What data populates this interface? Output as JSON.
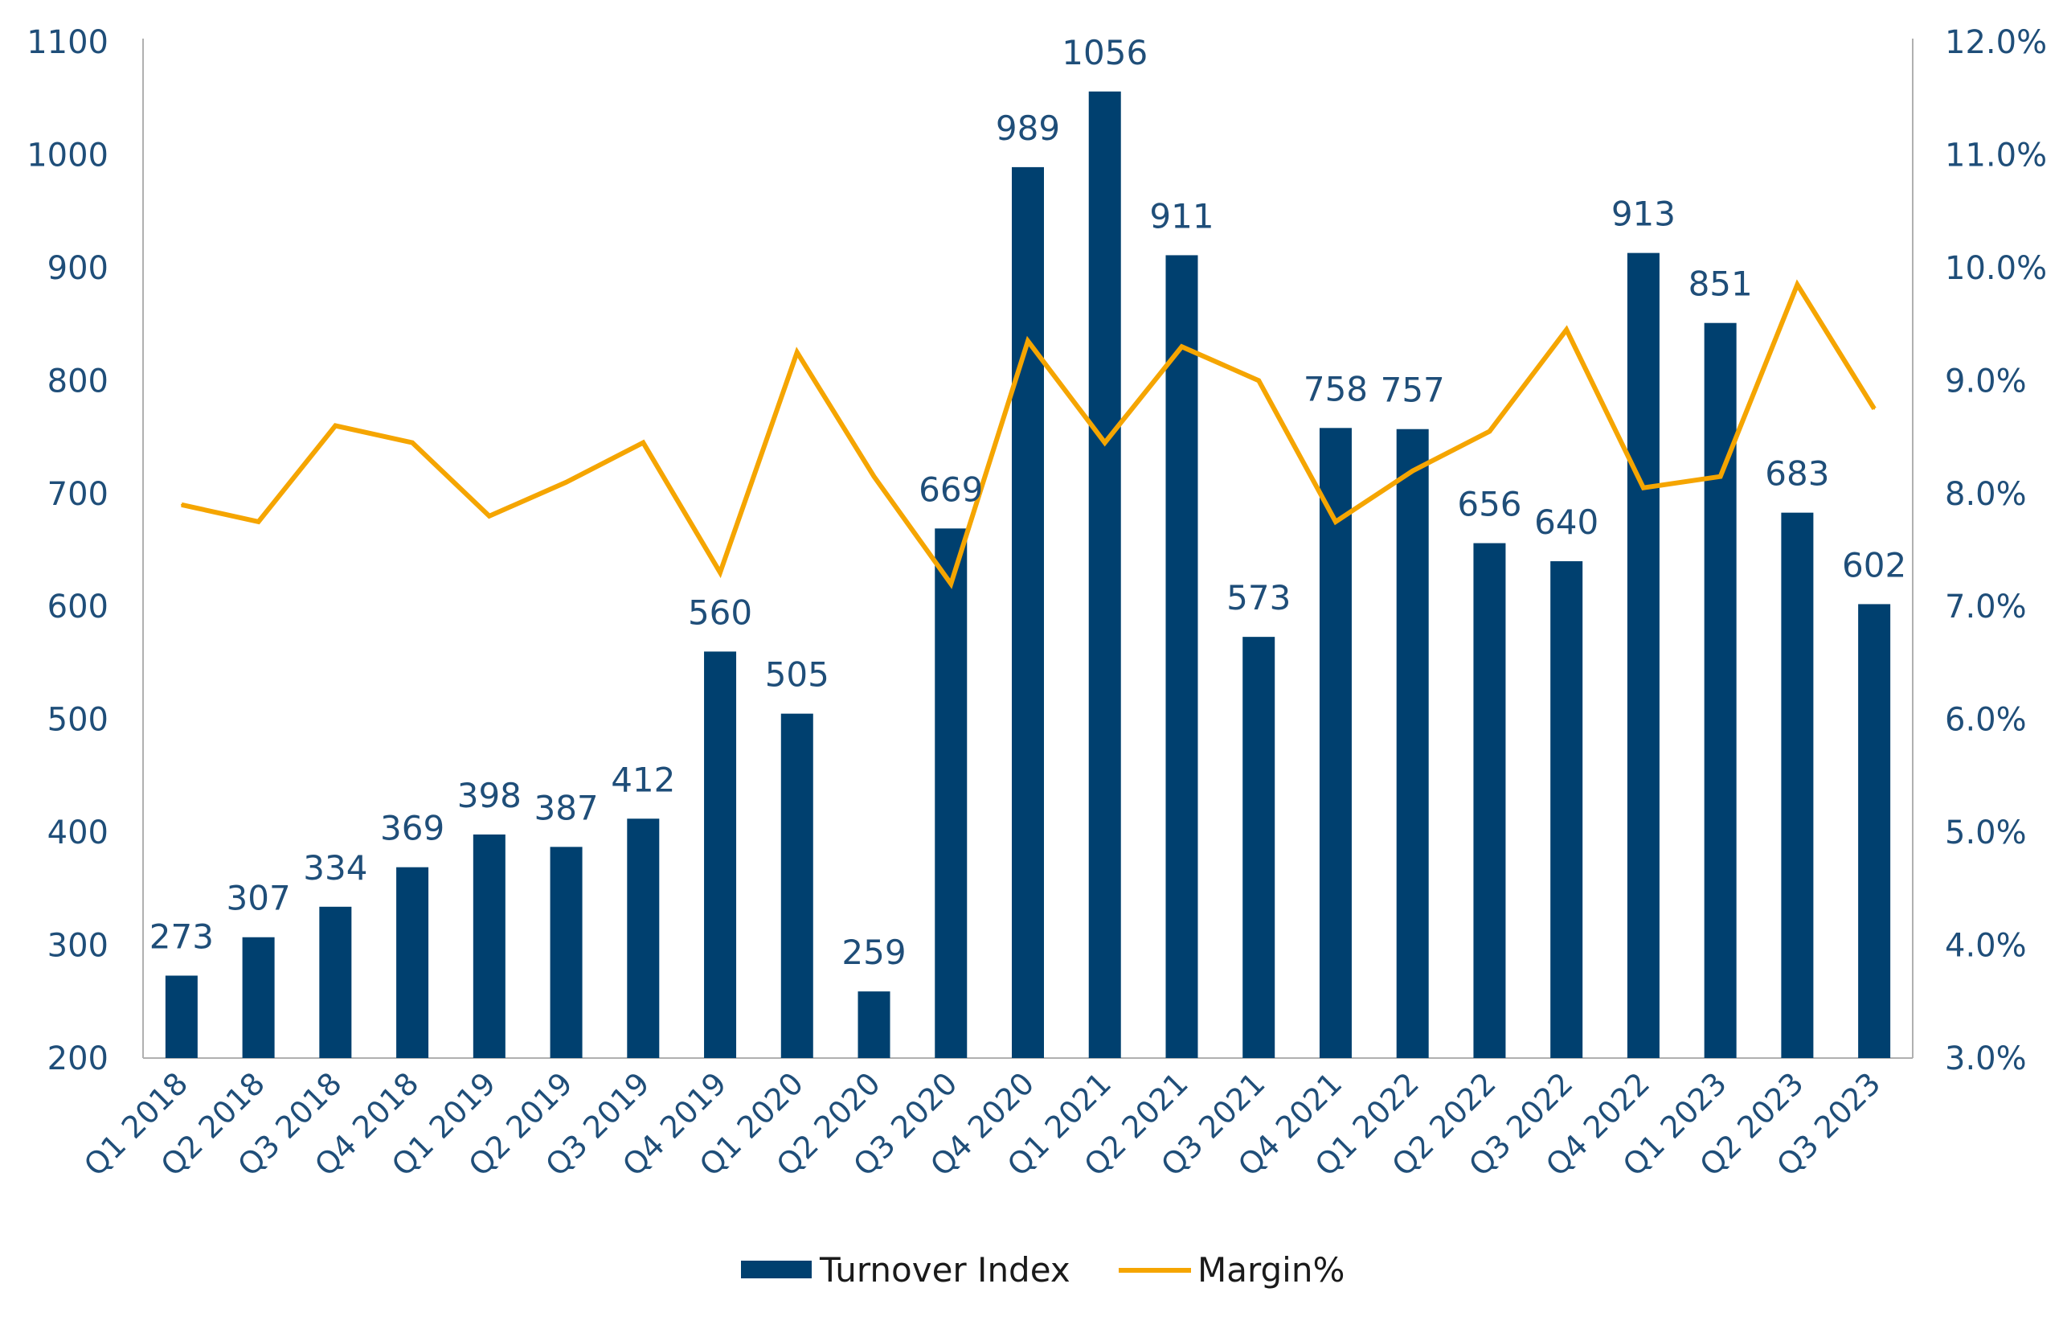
{
  "chart_data": {
    "type": "bar+line",
    "categories": [
      "Q1 2018",
      "Q2 2018",
      "Q3 2018",
      "Q4 2018",
      "Q1 2019",
      "Q2 2019",
      "Q3 2019",
      "Q4 2019",
      "Q1 2020",
      "Q2 2020",
      "Q3 2020",
      "Q4 2020",
      "Q1 2021",
      "Q2 2021",
      "Q3 2021",
      "Q4 2021",
      "Q1 2022",
      "Q2 2022",
      "Q3 2022",
      "Q4 2022",
      "Q1 2023",
      "Q2 2023",
      "Q3 2023"
    ],
    "series": [
      {
        "name": "Turnover Index",
        "type": "bar",
        "axis": "left",
        "color": "#00406f",
        "values": [
          273,
          307,
          334,
          369,
          398,
          387,
          412,
          560,
          505,
          259,
          669,
          989,
          1056,
          911,
          573,
          758,
          757,
          656,
          640,
          913,
          851,
          683,
          602
        ]
      },
      {
        "name": "Margin%",
        "type": "line",
        "axis": "right",
        "color": "#f5a500",
        "values": [
          7.9,
          7.75,
          8.6,
          8.45,
          7.8,
          8.1,
          8.45,
          7.3,
          9.25,
          8.15,
          7.2,
          9.35,
          8.45,
          9.3,
          9.0,
          7.75,
          8.2,
          8.55,
          9.45,
          8.05,
          8.15,
          9.85,
          8.75
        ]
      }
    ],
    "y_left": {
      "min": 200,
      "max": 1100,
      "step": 100,
      "ticks": [
        "200",
        "300",
        "400",
        "500",
        "600",
        "700",
        "800",
        "900",
        "1000",
        "1100"
      ]
    },
    "y_right": {
      "min": 3.0,
      "max": 12.0,
      "step": 1.0,
      "ticks": [
        "3.0%",
        "4.0%",
        "5.0%",
        "6.0%",
        "7.0%",
        "8.0%",
        "9.0%",
        "10.0%",
        "11.0%",
        "12.0%"
      ]
    },
    "data_labels": [
      "273",
      "307",
      "334",
      "369",
      "398",
      "387",
      "412",
      "560",
      "505",
      "259",
      "669",
      "989",
      "1056",
      "911",
      "573",
      "758",
      "757",
      "656",
      "640",
      "913",
      "851",
      "683",
      "602"
    ],
    "grid": false,
    "legend": {
      "position": "bottom-center",
      "entries": [
        "Turnover Index",
        "Margin%"
      ]
    }
  }
}
